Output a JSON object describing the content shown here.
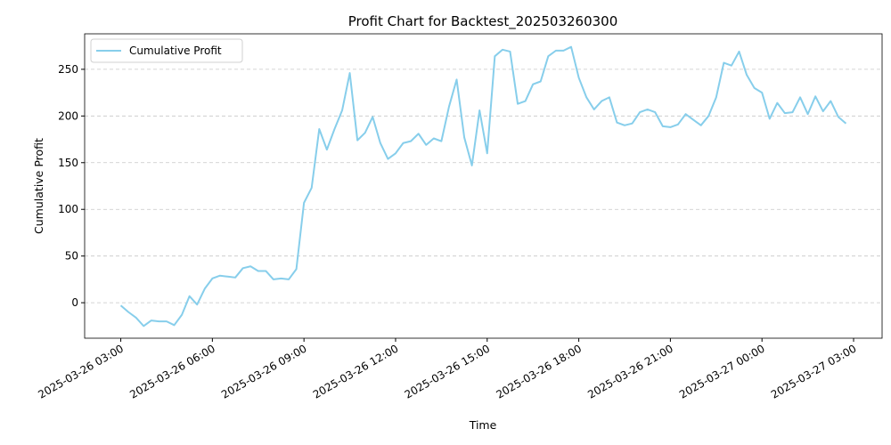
{
  "chart_data": {
    "type": "line",
    "title": "Profit Chart for Backtest_202503260300",
    "xlabel": "Time",
    "ylabel": "Cumulative Profit",
    "x": [
      "2025-03-26 03:00",
      "2025-03-26 03:15",
      "2025-03-26 03:30",
      "2025-03-26 03:45",
      "2025-03-26 04:00",
      "2025-03-26 04:15",
      "2025-03-26 04:30",
      "2025-03-26 04:45",
      "2025-03-26 05:00",
      "2025-03-26 05:15",
      "2025-03-26 05:30",
      "2025-03-26 05:45",
      "2025-03-26 06:00",
      "2025-03-26 06:15",
      "2025-03-26 06:30",
      "2025-03-26 06:45",
      "2025-03-26 07:00",
      "2025-03-26 07:15",
      "2025-03-26 07:30",
      "2025-03-26 07:45",
      "2025-03-26 08:00",
      "2025-03-26 08:15",
      "2025-03-26 08:30",
      "2025-03-26 08:45",
      "2025-03-26 09:00",
      "2025-03-26 09:15",
      "2025-03-26 09:30",
      "2025-03-26 09:45",
      "2025-03-26 10:00",
      "2025-03-26 10:15",
      "2025-03-26 10:30",
      "2025-03-26 10:45",
      "2025-03-26 11:00",
      "2025-03-26 11:15",
      "2025-03-26 11:30",
      "2025-03-26 11:45",
      "2025-03-26 12:00",
      "2025-03-26 12:15",
      "2025-03-26 12:30",
      "2025-03-26 12:45",
      "2025-03-26 13:00",
      "2025-03-26 13:15",
      "2025-03-26 13:30",
      "2025-03-26 13:45",
      "2025-03-26 14:00",
      "2025-03-26 14:15",
      "2025-03-26 14:30",
      "2025-03-26 14:45",
      "2025-03-26 15:00",
      "2025-03-26 15:15",
      "2025-03-26 15:30",
      "2025-03-26 15:45",
      "2025-03-26 16:00",
      "2025-03-26 16:15",
      "2025-03-26 16:30",
      "2025-03-26 16:45",
      "2025-03-26 17:00",
      "2025-03-26 17:15",
      "2025-03-26 17:30",
      "2025-03-26 17:45",
      "2025-03-26 18:00",
      "2025-03-26 18:15",
      "2025-03-26 18:30",
      "2025-03-26 18:45",
      "2025-03-26 19:00",
      "2025-03-26 19:15",
      "2025-03-26 19:30",
      "2025-03-26 19:45",
      "2025-03-26 20:00",
      "2025-03-26 20:15",
      "2025-03-26 20:30",
      "2025-03-26 20:45",
      "2025-03-26 21:00",
      "2025-03-26 21:15",
      "2025-03-26 21:30",
      "2025-03-26 21:45",
      "2025-03-26 22:00",
      "2025-03-26 22:15",
      "2025-03-26 22:30",
      "2025-03-26 22:45",
      "2025-03-26 23:00",
      "2025-03-26 23:15",
      "2025-03-26 23:30",
      "2025-03-26 23:45",
      "2025-03-27 00:00",
      "2025-03-27 00:15",
      "2025-03-27 00:30",
      "2025-03-27 00:45",
      "2025-03-27 01:00",
      "2025-03-27 01:15",
      "2025-03-27 01:30",
      "2025-03-27 01:45",
      "2025-03-27 02:00",
      "2025-03-27 02:15",
      "2025-03-27 02:30",
      "2025-03-27 02:45"
    ],
    "series": [
      {
        "name": "Cumulative Profit",
        "color": "#87ceeb",
        "values": [
          -3,
          -10,
          -16,
          -25,
          -19,
          -20,
          -20,
          -24,
          -13,
          7,
          -2,
          15,
          26,
          29,
          28,
          27,
          37,
          39,
          34,
          34,
          25,
          26,
          25,
          36,
          107,
          123,
          186,
          164,
          186,
          206,
          246,
          174,
          182,
          199,
          171,
          154,
          160,
          171,
          173,
          181,
          169,
          176,
          173,
          210,
          239,
          177,
          147,
          206,
          160,
          264,
          271,
          269,
          213,
          216,
          234,
          237,
          264,
          270,
          270,
          274,
          241,
          220,
          207,
          216,
          220,
          193,
          190,
          192,
          204,
          207,
          204,
          189,
          188,
          191,
          202,
          196,
          190,
          200,
          220,
          257,
          254,
          269,
          244,
          230,
          225,
          197,
          214,
          203,
          204,
          220,
          202,
          221,
          205,
          216,
          199,
          192
        ]
      }
    ],
    "xlim": [
      "2025-03-26 01:49",
      "2025-03-27 03:56"
    ],
    "xticks": [
      "2025-03-26 03:00",
      "2025-03-26 06:00",
      "2025-03-26 09:00",
      "2025-03-26 12:00",
      "2025-03-26 15:00",
      "2025-03-26 18:00",
      "2025-03-26 21:00",
      "2025-03-27 00:00",
      "2025-03-27 03:00"
    ],
    "ylim": [
      -38,
      288
    ],
    "yticks": [
      0,
      50,
      100,
      150,
      200,
      250
    ],
    "grid": "y",
    "legend": "upper left"
  }
}
